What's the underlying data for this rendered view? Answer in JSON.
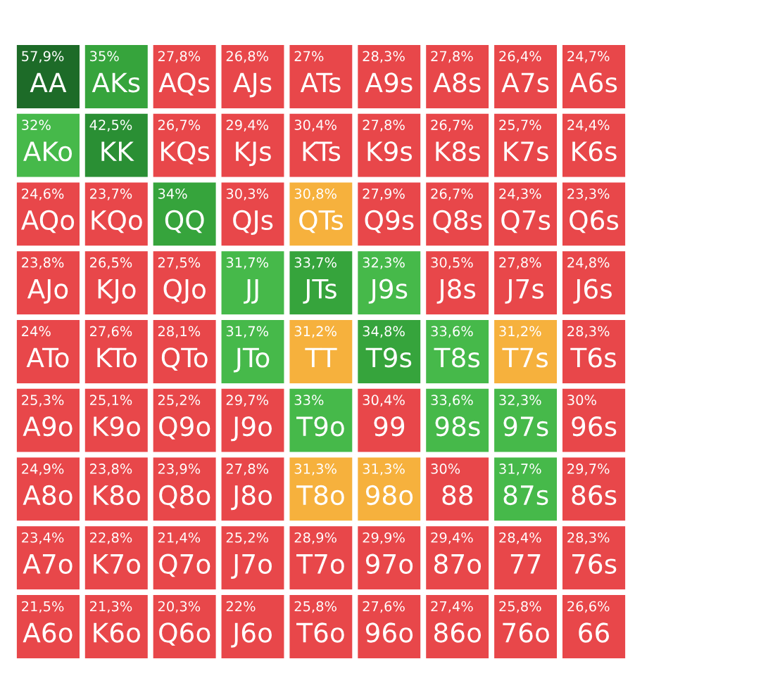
{
  "chart_data": {
    "type": "heatmap",
    "categories": [
      null,
      null,
      null,
      null,
      null,
      null,
      null,
      null,
      null
    ],
    "y_categories": [
      null,
      null,
      null,
      null,
      null,
      null,
      null,
      null,
      null
    ],
    "cells": [
      [
        57.9,
        35,
        27.8,
        26.8,
        27,
        28.3,
        27.8,
        26.4,
        24.7
      ],
      [
        32,
        42.5,
        26.7,
        29.4,
        30.4,
        27.8,
        26.7,
        25.7,
        24.4
      ],
      [
        24.6,
        23.7,
        34,
        30.3,
        30.8,
        27.9,
        26.7,
        24.3,
        23.3
      ],
      [
        23.8,
        26.5,
        27.5,
        31.7,
        33.7,
        32.3,
        30.5,
        27.8,
        24.8
      ],
      [
        24,
        27.6,
        28.1,
        31.7,
        31.2,
        34.8,
        33.6,
        31.2,
        28.3
      ],
      [
        25.3,
        25.1,
        25.2,
        29.7,
        33,
        30.4,
        33.6,
        32.3,
        30
      ],
      [
        24.9,
        23.8,
        23.9,
        27.8,
        31.3,
        31.3,
        30,
        31.7,
        29.7
      ],
      [
        23.4,
        22.8,
        21.4,
        25.2,
        28.9,
        29.9,
        29.4,
        28.4,
        28.3
      ],
      [
        21.5,
        21.3,
        20.3,
        22,
        25.8,
        27.6,
        27.4,
        25.8,
        26.6
      ]
    ],
    "cell_labels": [
      [
        "57,9%",
        "35%",
        "27,8%",
        "26,8%",
        "27%",
        "28,3%",
        "27,8%",
        "26,4%",
        "24,7%"
      ],
      [
        "32%",
        "42,5%",
        "26,7%",
        "29,4%",
        "30,4%",
        "27,8%",
        "26,7%",
        "25,7%",
        "24,4%"
      ],
      [
        "24,6%",
        "23,7%",
        "34%",
        "30,3%",
        "30,8%",
        "27,9%",
        "26,7%",
        "24,3%",
        "23,3%"
      ],
      [
        "23,8%",
        "26,5%",
        "27,5%",
        "31,7%",
        "33,7%",
        "32,3%",
        "30,5%",
        "27,8%",
        "24,8%"
      ],
      [
        "24%",
        "27,6%",
        "28,1%",
        "31,7%",
        "31,2%",
        "34,8%",
        "33,6%",
        "31,2%",
        "28,3%"
      ],
      [
        "25,3%",
        "25,1%",
        "25,2%",
        "29,7%",
        "33%",
        "30,4%",
        "33,6%",
        "32,3%",
        "30%"
      ],
      [
        "24,9%",
        "23,8%",
        "23,9%",
        "27,8%",
        "31,3%",
        "31,3%",
        "30%",
        "31,7%",
        "29,7%"
      ],
      [
        "23,4%",
        "22,8%",
        "21,4%",
        "25,2%",
        "28,9%",
        "29,9%",
        "29,4%",
        "28,4%",
        "28,3%"
      ],
      [
        "21,5%",
        "21,3%",
        "20,3%",
        "22%",
        "25,8%",
        "27,6%",
        "27,4%",
        "25,8%",
        "26,6%"
      ]
    ],
    "annotations": [
      "AA",
      "AKs",
      "AQs",
      "AJs",
      "ATs",
      "A9s",
      "A8s",
      "A7s",
      "A6s",
      "AKo",
      "KK",
      "KQs",
      "KJs",
      "KTs",
      "K9s",
      "K8s",
      "K7s",
      "K6s",
      "AQo",
      "KQo",
      "QQ",
      "QJs",
      "QTs",
      "Q9s",
      "Q8s",
      "Q7s",
      "Q6s",
      "AJo",
      "KJo",
      "QJo",
      "JJ",
      "JTs",
      "J9s",
      "J8s",
      "J7s",
      "J6s",
      "ATo",
      "KTo",
      "QTo",
      "JTo",
      "TT",
      "T9s",
      "T8s",
      "T7s",
      "T6s",
      "A9o",
      "K9o",
      "Q9o",
      "J9o",
      "T9o",
      "99",
      "98s",
      "97s",
      "96s",
      "A8o",
      "K8o",
      "Q8o",
      "J8o",
      "T8o",
      "98o",
      "88",
      "87s",
      "86s",
      "A7o",
      "K7o",
      "Q7o",
      "J7o",
      "T7o",
      "97o",
      "87o",
      "77",
      "76s",
      "A6o",
      "K6o",
      "Q6o",
      "J6o",
      "T6o",
      "96o",
      "86o",
      "76o",
      "66"
    ]
  }
}
